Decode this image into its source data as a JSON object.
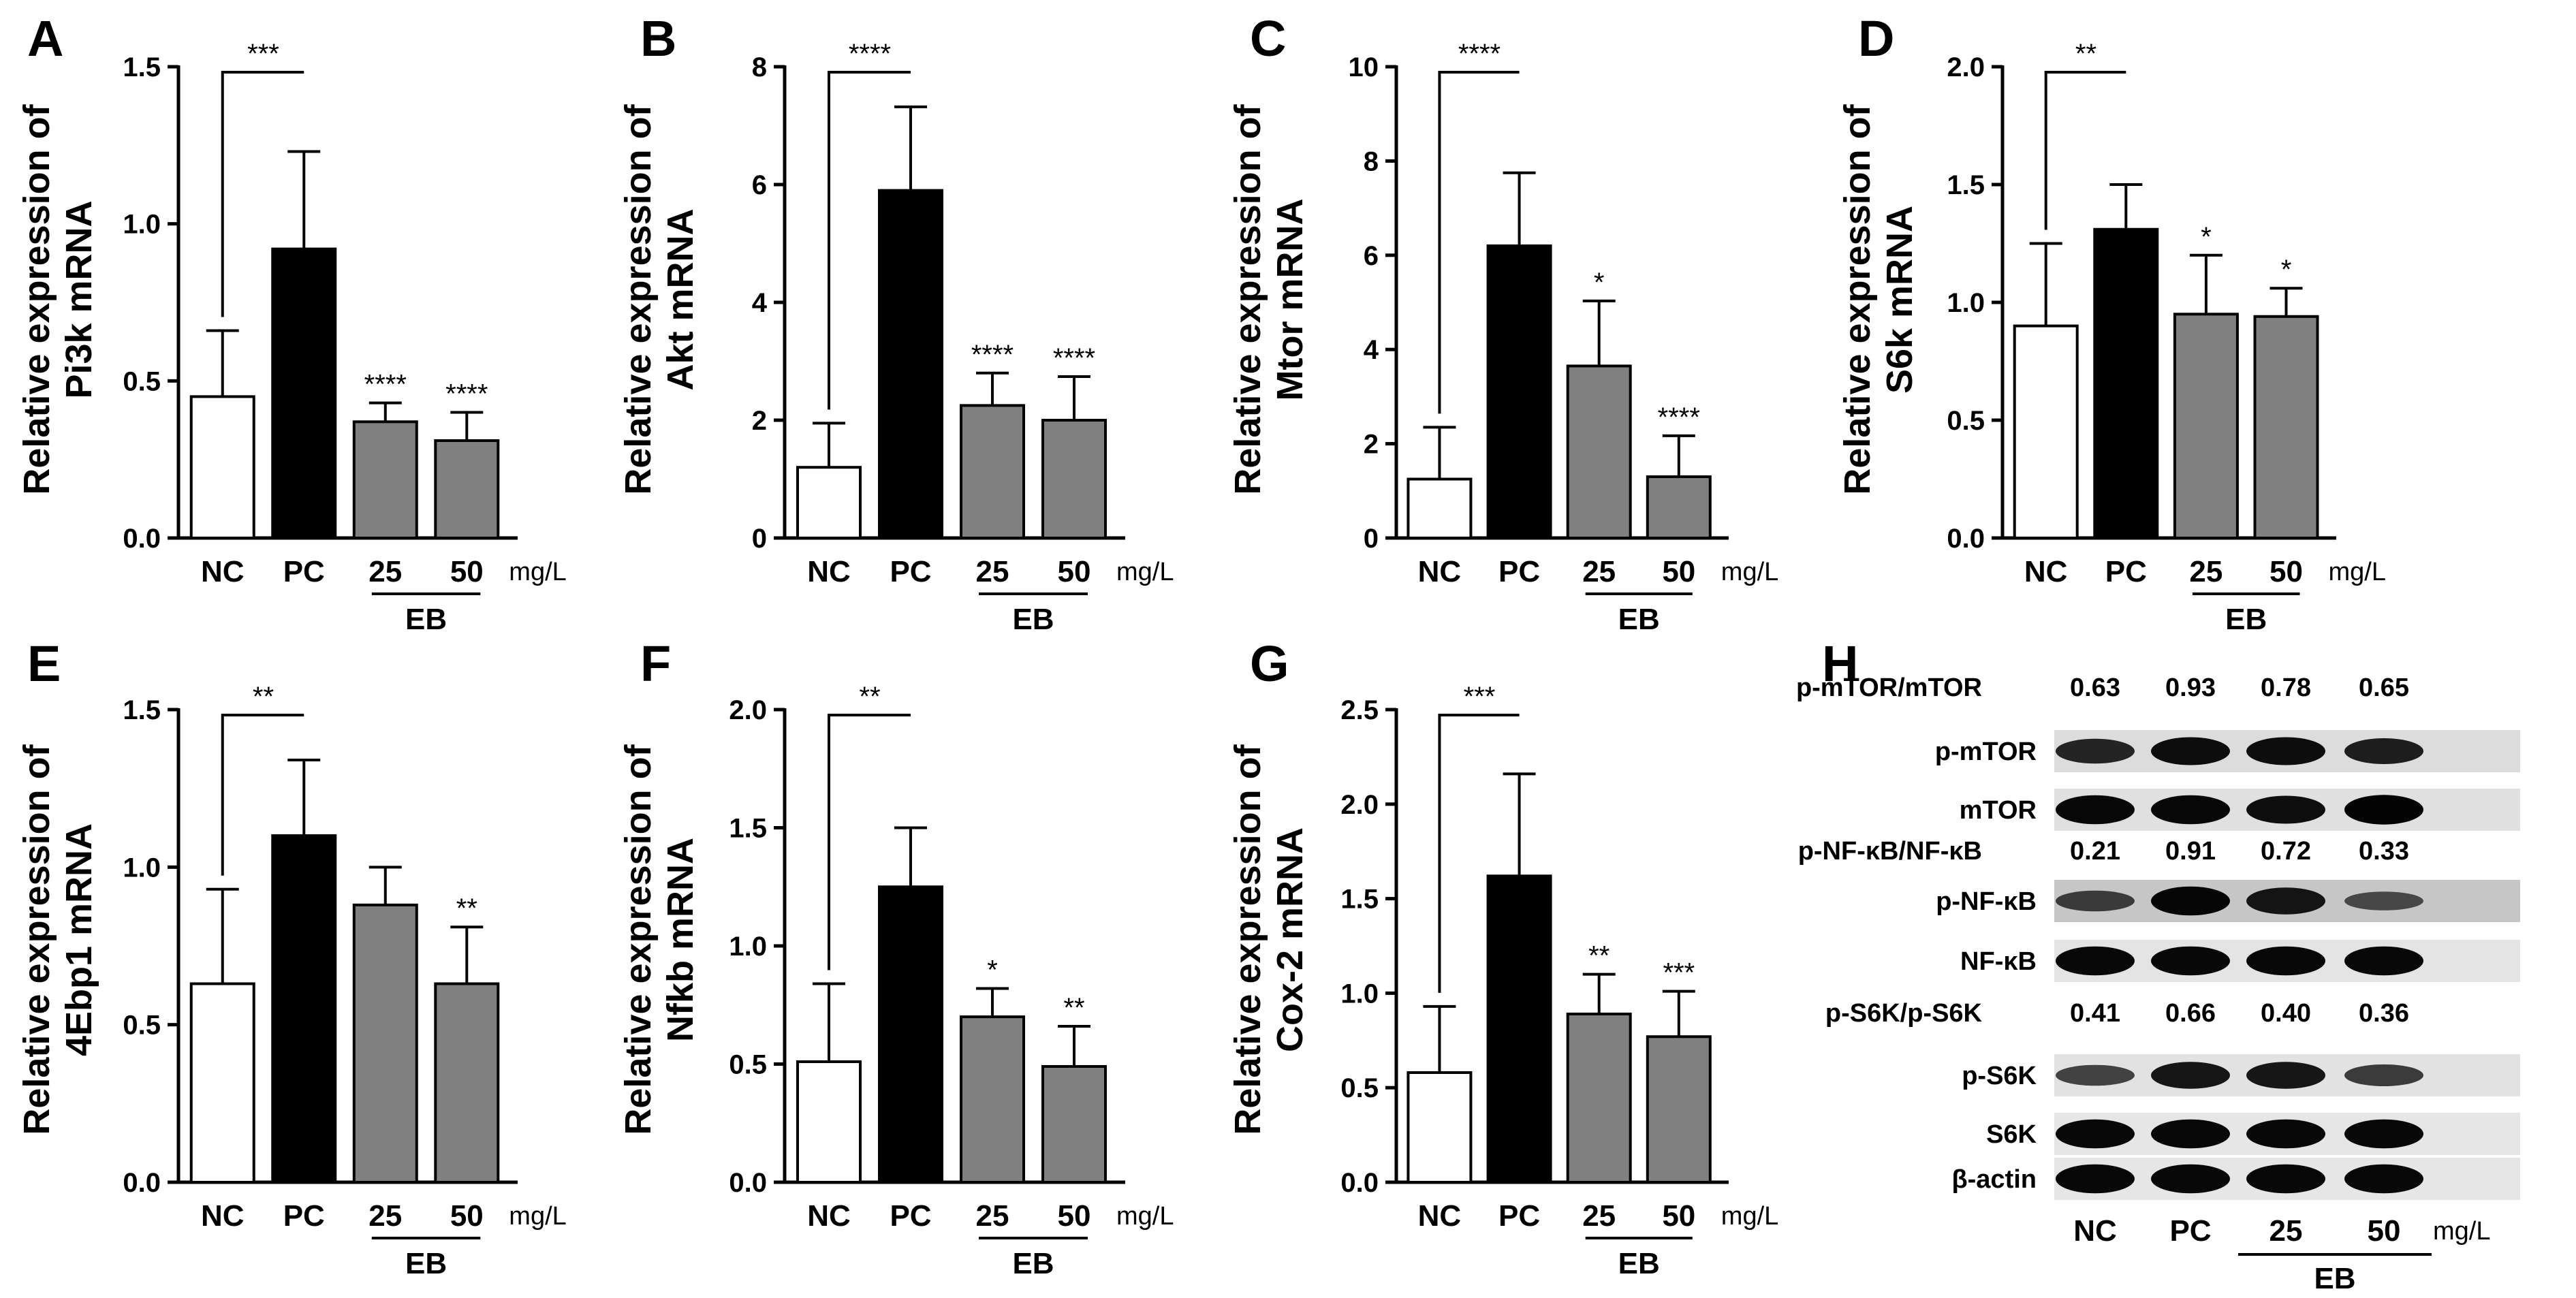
{
  "figure": {
    "unit_label": "mg/L",
    "group_label": "EB",
    "ylabel_line1": "Relative expression of"
  },
  "chart_data": [
    {
      "panel": "A",
      "type": "bar",
      "categories": [
        "NC",
        "PC",
        "25",
        "50"
      ],
      "values": [
        0.45,
        0.92,
        0.37,
        0.31
      ],
      "errors": [
        0.21,
        0.31,
        0.06,
        0.09
      ],
      "significance": [
        "",
        "",
        "****",
        "****"
      ],
      "bracket": "***",
      "fills": [
        "#ffffff",
        "#000000",
        "#808080",
        "#808080"
      ],
      "ylabel": "Pi3k mRNA",
      "ylim": [
        0,
        1.5
      ],
      "yticks": [
        "0.0",
        "0.5",
        "1.0",
        "1.5"
      ]
    },
    {
      "panel": "B",
      "type": "bar",
      "categories": [
        "NC",
        "PC",
        "25",
        "50"
      ],
      "values": [
        1.2,
        5.9,
        2.25,
        2.0
      ],
      "errors": [
        0.75,
        1.42,
        0.55,
        0.74
      ],
      "significance": [
        "",
        "",
        "****",
        "****"
      ],
      "bracket": "****",
      "fills": [
        "#ffffff",
        "#000000",
        "#808080",
        "#808080"
      ],
      "ylabel": "Akt mRNA",
      "ylim": [
        0,
        8
      ],
      "yticks": [
        "0",
        "2",
        "4",
        "6",
        "8"
      ]
    },
    {
      "panel": "C",
      "type": "bar",
      "categories": [
        "NC",
        "PC",
        "25",
        "50"
      ],
      "values": [
        1.25,
        6.2,
        3.65,
        1.3
      ],
      "errors": [
        1.1,
        1.55,
        1.38,
        0.87
      ],
      "significance": [
        "",
        "",
        "*",
        "****"
      ],
      "bracket": "****",
      "fills": [
        "#ffffff",
        "#000000",
        "#808080",
        "#808080"
      ],
      "ylabel": "Mtor mRNA",
      "ylim": [
        0,
        10
      ],
      "yticks": [
        "0",
        "2",
        "4",
        "6",
        "8",
        "10"
      ]
    },
    {
      "panel": "D",
      "type": "bar",
      "categories": [
        "NC",
        "PC",
        "25",
        "50"
      ],
      "values": [
        0.9,
        1.31,
        0.95,
        0.94
      ],
      "errors": [
        0.35,
        0.19,
        0.25,
        0.12
      ],
      "significance": [
        "",
        "",
        "*",
        "*"
      ],
      "bracket": "**",
      "fills": [
        "#ffffff",
        "#000000",
        "#808080",
        "#808080"
      ],
      "ylabel": "S6k mRNA",
      "ylim": [
        0,
        2.0
      ],
      "yticks": [
        "0.0",
        "0.5",
        "1.0",
        "1.5",
        "2.0"
      ]
    },
    {
      "panel": "E",
      "type": "bar",
      "categories": [
        "NC",
        "PC",
        "25",
        "50"
      ],
      "values": [
        0.63,
        1.1,
        0.88,
        0.63
      ],
      "errors": [
        0.3,
        0.24,
        0.12,
        0.18
      ],
      "significance": [
        "",
        "",
        "",
        "**"
      ],
      "bracket": "**",
      "fills": [
        "#ffffff",
        "#000000",
        "#808080",
        "#808080"
      ],
      "ylabel": "4Ebp1 mRNA",
      "ylim": [
        0,
        1.5
      ],
      "yticks": [
        "0.0",
        "0.5",
        "1.0",
        "1.5"
      ]
    },
    {
      "panel": "F",
      "type": "bar",
      "categories": [
        "NC",
        "PC",
        "25",
        "50"
      ],
      "values": [
        0.51,
        1.25,
        0.7,
        0.49
      ],
      "errors": [
        0.33,
        0.25,
        0.12,
        0.17
      ],
      "significance": [
        "",
        "",
        "*",
        "**"
      ],
      "bracket": "**",
      "fills": [
        "#ffffff",
        "#000000",
        "#808080",
        "#808080"
      ],
      "ylabel": "Nfkb mRNA",
      "ylim": [
        0,
        2.0
      ],
      "yticks": [
        "0.0",
        "0.5",
        "1.0",
        "1.5",
        "2.0"
      ]
    },
    {
      "panel": "G",
      "type": "bar",
      "categories": [
        "NC",
        "PC",
        "25",
        "50"
      ],
      "values": [
        0.58,
        1.62,
        0.89,
        0.77
      ],
      "errors": [
        0.35,
        0.54,
        0.21,
        0.24
      ],
      "significance": [
        "",
        "",
        "**",
        "***"
      ],
      "bracket": "***",
      "fills": [
        "#ffffff",
        "#000000",
        "#808080",
        "#808080"
      ],
      "ylabel": "Cox-2 mRNA",
      "ylim": [
        0,
        2.5
      ],
      "yticks": [
        "0.0",
        "0.5",
        "1.0",
        "1.5",
        "2.0",
        "2.5"
      ]
    }
  ],
  "blot": {
    "panel": "H",
    "lane_labels": [
      "NC",
      "PC",
      "25",
      "50"
    ],
    "ratio_rows": [
      {
        "label": "p-mTOR/mTOR",
        "values": [
          "0.63",
          "0.93",
          "0.78",
          "0.65"
        ]
      },
      {
        "label": "p-NF-κB/NF-κB",
        "values": [
          "0.21",
          "0.91",
          "0.72",
          "0.33"
        ]
      },
      {
        "label": "p-S6K/p-S6K",
        "values": [
          "0.41",
          "0.66",
          "0.40",
          "0.36"
        ]
      }
    ],
    "bands": [
      {
        "label": "p-mTOR",
        "intensity": [
          0.75,
          0.9,
          0.9,
          0.8
        ],
        "bg": "#dcdcdc"
      },
      {
        "label": "mTOR",
        "intensity": [
          0.95,
          0.95,
          0.9,
          0.98
        ],
        "bg": "#e0e0e0"
      },
      {
        "label": "p-NF-κB",
        "intensity": [
          0.55,
          0.95,
          0.85,
          0.45
        ],
        "bg": "#c6c6c6"
      },
      {
        "label": "NF-κB",
        "intensity": [
          0.95,
          0.95,
          0.95,
          0.95
        ],
        "bg": "#e4e4e4"
      },
      {
        "label": "p-S6K",
        "intensity": [
          0.55,
          0.85,
          0.85,
          0.6
        ],
        "bg": "#e2e2e2"
      },
      {
        "label": "S6K",
        "intensity": [
          0.95,
          0.95,
          0.95,
          0.95
        ],
        "bg": "#e6e6e6"
      },
      {
        "label": "β-actin",
        "intensity": [
          0.95,
          0.95,
          0.95,
          0.95
        ],
        "bg": "#e6e6e6"
      }
    ]
  }
}
